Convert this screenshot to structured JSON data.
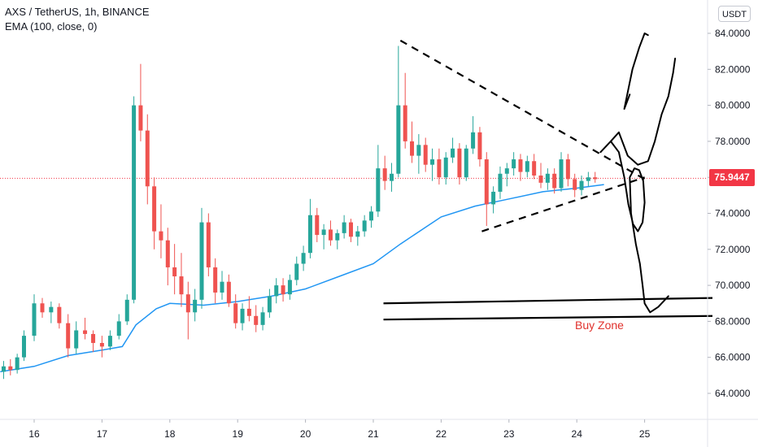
{
  "legend": {
    "symbol_line": "AXS / TetherUS, 1h, BINANCE",
    "indicator_line": "EMA (100, close, 0)"
  },
  "currency": "USDT",
  "last_price_label": "75.9447",
  "annotation_label": "Buy Zone",
  "colors": {
    "up": "#26a69a",
    "down": "#ef5350",
    "ema": "#2196f3",
    "price_badge": "#f23645",
    "buy_zone_text": "#e0312c",
    "axis_text": "#131722"
  },
  "chart_data": {
    "type": "candlestick",
    "y_axis": {
      "min": 62.5,
      "max": 85.0,
      "ticks": [
        "64.0000",
        "66.0000",
        "68.0000",
        "70.0000",
        "72.0000",
        "74.0000",
        "76.0000",
        "78.0000",
        "80.0000",
        "82.0000",
        "84.0000"
      ]
    },
    "x_axis": {
      "ticks": [
        "16",
        "17",
        "18",
        "19",
        "20",
        "21",
        "22",
        "23",
        "24",
        "25"
      ]
    },
    "last_price": 75.9447,
    "series": [
      {
        "name": "EMA (100, close, 0)",
        "points": [
          [
            15.5,
            65.2
          ],
          [
            16.0,
            65.5
          ],
          [
            16.5,
            66.1
          ],
          [
            17.0,
            66.4
          ],
          [
            17.3,
            66.6
          ],
          [
            17.5,
            67.8
          ],
          [
            17.8,
            68.7
          ],
          [
            18.0,
            69.0
          ],
          [
            18.5,
            68.9
          ],
          [
            19.0,
            69.1
          ],
          [
            19.5,
            69.4
          ],
          [
            20.0,
            69.8
          ],
          [
            20.5,
            70.5
          ],
          [
            21.0,
            71.2
          ],
          [
            21.4,
            72.3
          ],
          [
            21.8,
            73.3
          ],
          [
            22.0,
            73.8
          ],
          [
            22.5,
            74.4
          ],
          [
            23.0,
            74.8
          ],
          [
            23.5,
            75.2
          ],
          [
            24.0,
            75.4
          ],
          [
            24.4,
            75.6
          ]
        ]
      }
    ],
    "candles": [
      [
        15.55,
        65.2,
        65.8,
        64.8,
        65.5
      ],
      [
        15.65,
        65.5,
        65.9,
        65.0,
        65.3
      ],
      [
        15.75,
        65.3,
        66.2,
        65.1,
        66.0
      ],
      [
        15.85,
        66.0,
        67.5,
        65.8,
        67.2
      ],
      [
        16.0,
        67.2,
        69.5,
        66.9,
        69.0
      ],
      [
        16.12,
        69.0,
        69.3,
        68.2,
        68.5
      ],
      [
        16.25,
        68.5,
        69.1,
        67.9,
        68.8
      ],
      [
        16.37,
        68.8,
        69.0,
        67.6,
        67.9
      ],
      [
        16.5,
        67.9,
        68.4,
        66.0,
        66.5
      ],
      [
        16.62,
        66.5,
        68.0,
        66.2,
        67.5
      ],
      [
        16.75,
        67.5,
        68.2,
        67.0,
        67.3
      ],
      [
        16.87,
        67.3,
        67.5,
        66.3,
        66.8
      ],
      [
        17.0,
        66.8,
        67.2,
        66.0,
        66.6
      ],
      [
        17.12,
        66.6,
        67.5,
        66.4,
        67.2
      ],
      [
        17.25,
        67.2,
        68.4,
        67.0,
        68.0
      ],
      [
        17.37,
        68.0,
        69.5,
        67.8,
        69.2
      ],
      [
        17.47,
        69.2,
        80.5,
        69.0,
        80.0
      ],
      [
        17.57,
        80.0,
        82.3,
        78.0,
        78.6
      ],
      [
        17.67,
        78.6,
        79.5,
        74.5,
        75.5
      ],
      [
        17.77,
        75.5,
        76.0,
        72.0,
        73.0
      ],
      [
        17.87,
        73.0,
        74.5,
        71.5,
        72.5
      ],
      [
        17.97,
        72.5,
        73.2,
        70.0,
        71.0
      ],
      [
        18.07,
        71.0,
        72.3,
        69.5,
        70.5
      ],
      [
        18.17,
        70.5,
        71.8,
        68.8,
        69.5
      ],
      [
        18.27,
        69.5,
        70.2,
        67.0,
        68.5
      ],
      [
        18.37,
        68.5,
        69.8,
        68.0,
        69.2
      ],
      [
        18.47,
        69.2,
        74.3,
        68.7,
        73.5
      ],
      [
        18.57,
        73.5,
        74.0,
        70.5,
        71.0
      ],
      [
        18.67,
        71.0,
        71.5,
        69.0,
        69.6
      ],
      [
        18.77,
        69.6,
        70.8,
        69.2,
        70.2
      ],
      [
        18.87,
        70.2,
        70.6,
        68.8,
        69.0
      ],
      [
        18.97,
        69.0,
        69.5,
        67.6,
        67.9
      ],
      [
        19.07,
        67.9,
        69.0,
        67.5,
        68.7
      ],
      [
        19.17,
        68.7,
        69.4,
        68.0,
        68.3
      ],
      [
        19.27,
        68.3,
        68.9,
        67.4,
        67.8
      ],
      [
        19.37,
        67.8,
        68.8,
        67.5,
        68.5
      ],
      [
        19.47,
        68.5,
        69.8,
        68.2,
        69.4
      ],
      [
        19.57,
        69.4,
        70.4,
        69.0,
        70.0
      ],
      [
        19.67,
        70.0,
        70.4,
        69.1,
        69.5
      ],
      [
        19.77,
        69.5,
        70.6,
        69.2,
        70.3
      ],
      [
        19.87,
        70.3,
        71.6,
        70.0,
        71.2
      ],
      [
        19.97,
        71.2,
        72.2,
        70.8,
        71.8
      ],
      [
        20.07,
        71.8,
        74.8,
        71.5,
        73.9
      ],
      [
        20.17,
        73.9,
        74.3,
        72.4,
        72.8
      ],
      [
        20.27,
        72.8,
        73.4,
        72.0,
        73.1
      ],
      [
        20.37,
        73.1,
        73.6,
        72.2,
        72.5
      ],
      [
        20.47,
        72.5,
        73.1,
        72.0,
        72.9
      ],
      [
        20.57,
        72.9,
        73.9,
        72.6,
        73.5
      ],
      [
        20.67,
        73.5,
        73.7,
        72.4,
        72.7
      ],
      [
        20.77,
        72.7,
        73.3,
        72.2,
        73.0
      ],
      [
        20.87,
        73.0,
        73.9,
        72.7,
        73.6
      ],
      [
        20.97,
        73.6,
        74.4,
        73.2,
        74.1
      ],
      [
        21.07,
        74.1,
        77.8,
        73.8,
        76.5
      ],
      [
        21.17,
        76.5,
        77.2,
        75.3,
        75.8
      ],
      [
        21.27,
        75.8,
        76.8,
        75.2,
        76.2
      ],
      [
        21.37,
        76.2,
        83.3,
        76.0,
        80.0
      ],
      [
        21.47,
        80.0,
        81.8,
        77.6,
        78.0
      ],
      [
        21.57,
        78.0,
        79.1,
        76.8,
        77.2
      ],
      [
        21.67,
        77.2,
        78.4,
        76.2,
        77.8
      ],
      [
        21.77,
        77.8,
        78.2,
        76.3,
        76.7
      ],
      [
        21.87,
        76.7,
        77.6,
        75.8,
        77.0
      ],
      [
        21.97,
        77.0,
        77.6,
        75.6,
        76.0
      ],
      [
        22.07,
        76.0,
        77.4,
        75.6,
        77.1
      ],
      [
        22.17,
        77.1,
        78.2,
        76.8,
        77.6
      ],
      [
        22.27,
        77.6,
        77.9,
        75.6,
        76.0
      ],
      [
        22.37,
        76.0,
        77.8,
        75.8,
        77.6
      ],
      [
        22.47,
        77.6,
        79.4,
        77.3,
        78.5
      ],
      [
        22.57,
        78.5,
        78.8,
        76.6,
        77.0
      ],
      [
        22.67,
        77.0,
        77.4,
        73.3,
        74.5
      ],
      [
        22.77,
        74.5,
        75.5,
        74.0,
        75.2
      ],
      [
        22.87,
        75.2,
        76.6,
        74.8,
        76.2
      ],
      [
        22.97,
        76.2,
        76.8,
        75.5,
        76.5
      ],
      [
        23.07,
        76.5,
        77.4,
        76.1,
        77.0
      ],
      [
        23.17,
        77.0,
        77.3,
        75.8,
        76.3
      ],
      [
        23.27,
        76.3,
        77.2,
        76.0,
        76.9
      ],
      [
        23.37,
        76.9,
        77.3,
        75.9,
        76.1
      ],
      [
        23.47,
        76.1,
        76.8,
        75.4,
        75.7
      ],
      [
        23.57,
        75.7,
        76.5,
        75.3,
        76.2
      ],
      [
        23.67,
        76.2,
        76.5,
        75.1,
        75.4
      ],
      [
        23.77,
        75.4,
        77.4,
        75.2,
        77.0
      ],
      [
        23.87,
        77.0,
        77.3,
        75.5,
        75.9
      ],
      [
        23.97,
        75.9,
        76.2,
        74.9,
        75.3
      ],
      [
        24.07,
        75.3,
        76.1,
        75.0,
        75.8
      ],
      [
        24.17,
        75.8,
        76.3,
        75.5,
        76.0
      ],
      [
        24.27,
        76.0,
        76.3,
        75.7,
        75.9
      ]
    ],
    "annotations": {
      "triangle_upper": [
        [
          21.4,
          83.6
        ],
        [
          25.0,
          75.9
        ]
      ],
      "triangle_lower": [
        [
          22.6,
          73.0
        ],
        [
          25.0,
          76.0
        ]
      ],
      "buy_zone_upper": [
        [
          21.15,
          69.0
        ],
        [
          26.0,
          69.3
        ]
      ],
      "buy_zone_lower": [
        [
          21.15,
          68.1
        ],
        [
          26.0,
          68.3
        ]
      ],
      "projection_path": [
        [
          24.35,
          77.4
        ],
        [
          24.5,
          78.0
        ],
        [
          24.62,
          77.4
        ],
        [
          24.7,
          76.0
        ],
        [
          24.76,
          74.5
        ],
        [
          24.83,
          73.4
        ],
        [
          24.9,
          73.0
        ],
        [
          24.97,
          73.5
        ],
        [
          25.0,
          74.6
        ],
        [
          24.98,
          75.8
        ],
        [
          24.92,
          76.4
        ],
        [
          24.85,
          76.5
        ],
        [
          24.78,
          76.0
        ],
        [
          24.8,
          74.0
        ],
        [
          24.87,
          72.3
        ],
        [
          24.93,
          71.2
        ],
        [
          24.97,
          70.0
        ],
        [
          25.0,
          69.0
        ],
        [
          25.08,
          68.5
        ],
        [
          25.2,
          68.8
        ],
        [
          25.35,
          69.4
        ]
      ],
      "projection_path_upper": [
        [
          24.5,
          78.0
        ],
        [
          24.62,
          78.5
        ],
        [
          24.75,
          77.2
        ],
        [
          24.9,
          76.7
        ],
        [
          25.05,
          76.9
        ],
        [
          25.15,
          78.0
        ],
        [
          25.25,
          79.5
        ],
        [
          25.35,
          80.5
        ],
        [
          25.42,
          81.8
        ],
        [
          25.45,
          82.6
        ]
      ],
      "projection_path_top": [
        [
          24.78,
          80.6
        ],
        [
          24.7,
          79.8
        ],
        [
          24.82,
          82.0
        ],
        [
          24.92,
          83.2
        ],
        [
          25.0,
          84.0
        ],
        [
          25.05,
          83.9
        ]
      ]
    }
  }
}
